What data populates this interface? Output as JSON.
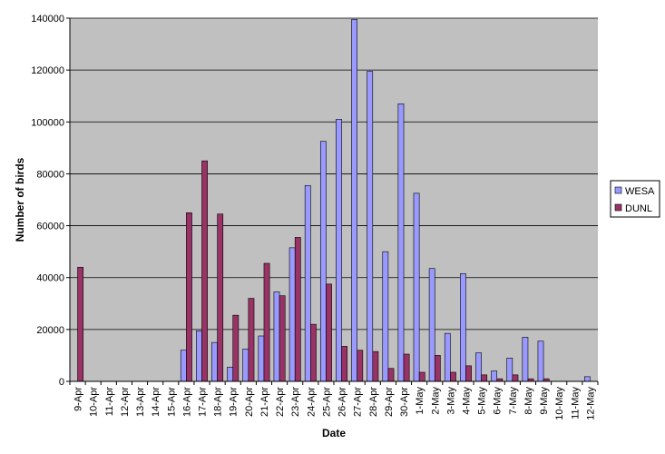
{
  "chart_data": {
    "type": "bar",
    "xlabel": "Date",
    "ylabel": "Number of birds",
    "ylim": [
      0,
      140000
    ],
    "yticks": [
      0,
      20000,
      40000,
      60000,
      80000,
      100000,
      120000,
      140000
    ],
    "grid": true,
    "legend": "right",
    "categories": [
      "9-Apr",
      "10-Apr",
      "11-Apr",
      "12-Apr",
      "13-Apr",
      "14-Apr",
      "15-Apr",
      "16-Apr",
      "17-Apr",
      "18-Apr",
      "19-Apr",
      "20-Apr",
      "21-Apr",
      "22-Apr",
      "23-Apr",
      "24-Apr",
      "25-Apr",
      "26-Apr",
      "27-Apr",
      "28-Apr",
      "29-Apr",
      "30-Apr",
      "1-May",
      "2-May",
      "3-May",
      "4-May",
      "5-May",
      "6-May",
      "7-May",
      "8-May",
      "9-May",
      "10-May",
      "11-May",
      "12-May"
    ],
    "series": [
      {
        "name": "WESA",
        "color": "#9999ff",
        "values": [
          0,
          0,
          0,
          0,
          0,
          0,
          0,
          12000,
          19500,
          15000,
          5500,
          12500,
          17500,
          34500,
          51500,
          75500,
          92500,
          101000,
          139500,
          119500,
          50000,
          107000,
          72500,
          43500,
          18500,
          41500,
          11000,
          4000,
          9000,
          17000,
          15500,
          0,
          0,
          1800
        ]
      },
      {
        "name": "DUNL",
        "color": "#993366",
        "values": [
          44000,
          0,
          0,
          0,
          0,
          0,
          0,
          65000,
          85000,
          64500,
          25500,
          32000,
          45500,
          33000,
          55500,
          22000,
          37500,
          13500,
          12000,
          11500,
          5000,
          10500,
          3500,
          10000,
          3500,
          6000,
          2500,
          1000,
          2500,
          1000,
          1000,
          0,
          0,
          0
        ]
      }
    ]
  }
}
